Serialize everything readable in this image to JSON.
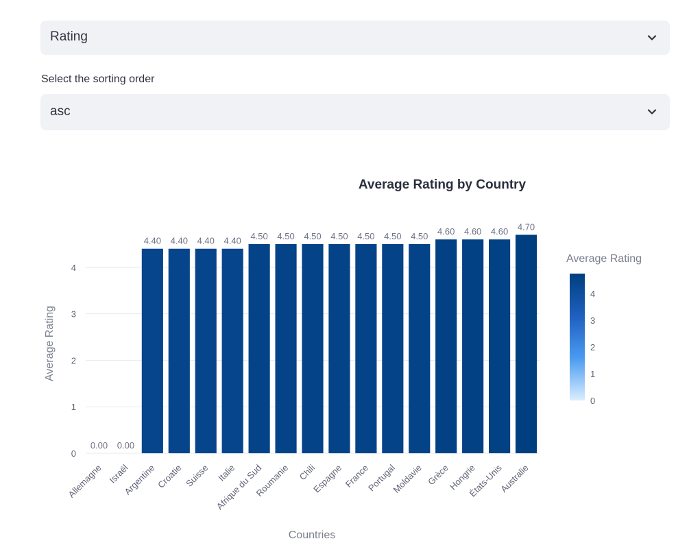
{
  "metric_select": {
    "value": "Rating",
    "icon": "chevron-down-icon"
  },
  "order_select": {
    "label": "Select the sorting order",
    "value": "asc",
    "icon": "chevron-down-icon"
  },
  "chart_data": {
    "type": "bar",
    "title": "Average Rating by Country",
    "xlabel": "Countries",
    "ylabel": "Average Rating",
    "ylim": [
      0,
      4.75
    ],
    "yticks": [
      0,
      1,
      2,
      3,
      4
    ],
    "grid": true,
    "categories": [
      "Allemagne",
      "Israël",
      "Argentine",
      "Croatie",
      "Suisse",
      "Italie",
      "Afrique du Sud",
      "Roumanie",
      "Chili",
      "Espagne",
      "France",
      "Portugal",
      "Moldavie",
      "Grèce",
      "Hongrie",
      "États-Unis",
      "Australie"
    ],
    "values": [
      0.0,
      0.0,
      4.4,
      4.4,
      4.4,
      4.4,
      4.5,
      4.5,
      4.5,
      4.5,
      4.5,
      4.5,
      4.5,
      4.6,
      4.6,
      4.6,
      4.7
    ],
    "data_labels": [
      "0.00",
      "0.00",
      "4.40",
      "4.40",
      "4.40",
      "4.40",
      "4.50",
      "4.50",
      "4.50",
      "4.50",
      "4.50",
      "4.50",
      "4.50",
      "4.60",
      "4.60",
      "4.60",
      "4.70"
    ],
    "colorbar": {
      "title": "Average Rating",
      "ticks": [
        0,
        1,
        2,
        3,
        4
      ],
      "range": [
        0,
        4.7
      ],
      "colors": [
        "#dbeeff",
        "#4a9bf0",
        "#1f5fbf",
        "#003f7f"
      ]
    }
  }
}
